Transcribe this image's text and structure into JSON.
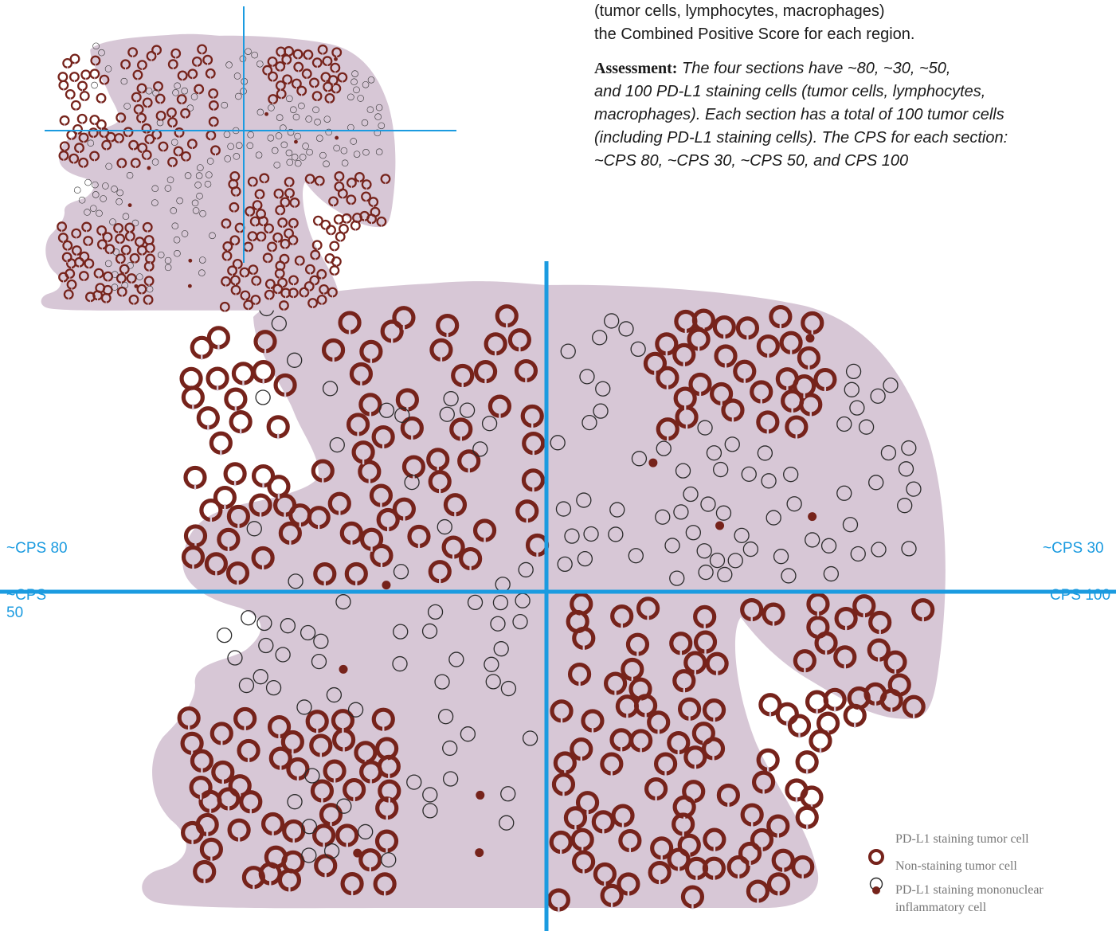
{
  "instruction_lines": [
    "(tumor cells, lymphocytes, macrophages)",
    "the Combined Positive Score for each region."
  ],
  "assessment": {
    "lead": "Assessment:",
    "body_lines": [
      "The four sections have ~80, ~30, ~50,",
      "and 100 PD-L1 staining cells (tumor cells, lymphocytes,",
      "macrophages). Each section has a total of 100 tumor cells",
      "(including PD-L1 staining cells). The CPS for each section:",
      "~CPS 80, ~CPS 30, ~CPS 50, and CPS 100"
    ]
  },
  "quadrant_labels": {
    "top_left": "~CPS 80",
    "top_right": "~CPS 30",
    "bottom_left": "~CPS 50",
    "bottom_right": "CPS 100"
  },
  "legend": {
    "staining_tumor": "PD-L1 staining tumor cell",
    "non_staining_tumor": "Non-staining tumor cell",
    "inflammatory": "PD-L1 staining mononuclear inflammatory cell"
  },
  "colors": {
    "tissue": "#d7c7d6",
    "stain": "#76231b",
    "axis": "#1b9be0",
    "outline": "#2a2a2a"
  }
}
